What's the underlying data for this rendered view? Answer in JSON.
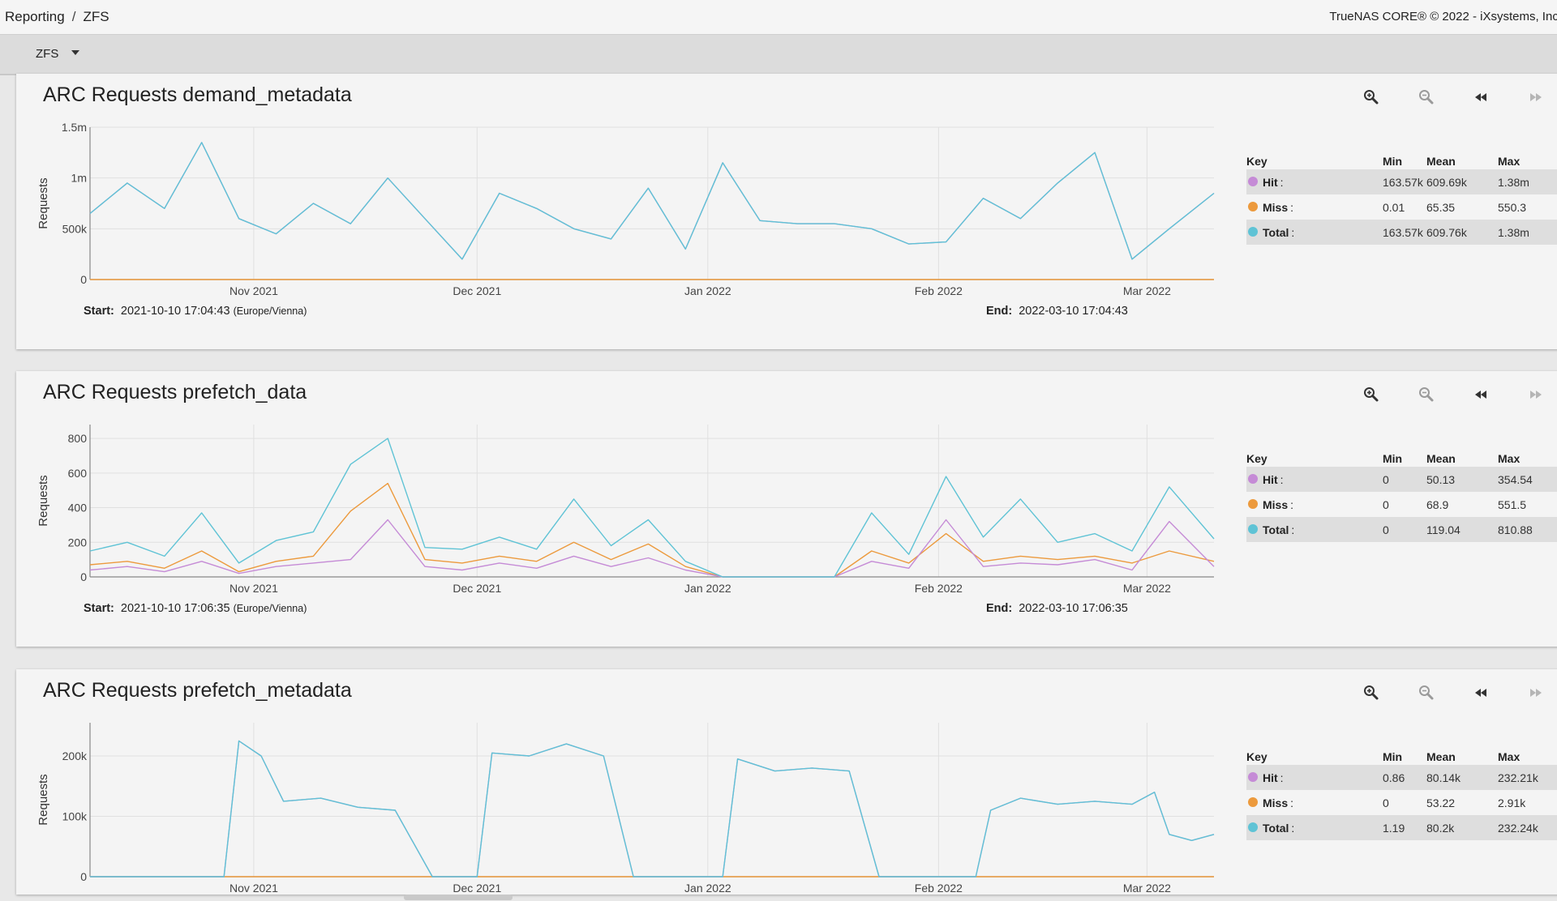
{
  "breadcrumb": {
    "parent": "Reporting",
    "separator": "/",
    "current": "ZFS"
  },
  "copyright": "TrueNAS CORE® © 2022 - iXsystems, Inc.",
  "toolbar": {
    "report_select": "ZFS"
  },
  "colors": {
    "hit": "#c58bd6",
    "miss": "#ec9a3d",
    "total": "#5fc3d5",
    "grid": "#e0e0e0",
    "axis": "#888888"
  },
  "icons": {
    "zoom_in": "zoom-in-icon",
    "zoom_out": "zoom-out-icon",
    "step_back": "rewind-icon",
    "step_forward": "fast-forward-icon"
  },
  "legend_header": {
    "key": "Key",
    "min": "Min",
    "mean": "Mean",
    "max": "Max"
  },
  "legend_labels": {
    "hit": "Hit",
    "miss": "Miss",
    "total": "Total"
  },
  "date_labels": {
    "start": "Start:",
    "end": "End:"
  },
  "charts": [
    {
      "title": "ARC Requests demand_metadata",
      "start": "2021-10-10 17:04:43",
      "timezone": "(Europe/Vienna)",
      "end": "2022-03-10 17:04:43",
      "stats": {
        "hit": {
          "min": "163.57k",
          "mean": "609.69k",
          "max": "1.38m"
        },
        "miss": {
          "min": "0.01",
          "mean": "65.35",
          "max": "550.3"
        },
        "total": {
          "min": "163.57k",
          "mean": "609.76k",
          "max": "1.38m"
        }
      }
    },
    {
      "title": "ARC Requests prefetch_data",
      "start": "2021-10-10 17:06:35",
      "timezone": "(Europe/Vienna)",
      "end": "2022-03-10 17:06:35",
      "stats": {
        "hit": {
          "min": "0",
          "mean": "50.13",
          "max": "354.54"
        },
        "miss": {
          "min": "0",
          "mean": "68.9",
          "max": "551.5"
        },
        "total": {
          "min": "0",
          "mean": "119.04",
          "max": "810.88"
        }
      }
    },
    {
      "title": "ARC Requests prefetch_metadata",
      "stats": {
        "hit": {
          "min": "0.86",
          "mean": "80.14k",
          "max": "232.21k"
        },
        "miss": {
          "min": "0",
          "mean": "53.22",
          "max": "2.91k"
        },
        "total": {
          "min": "1.19",
          "mean": "80.2k",
          "max": "232.24k"
        }
      }
    }
  ],
  "chart_data": [
    {
      "type": "line",
      "title": "ARC Requests demand_metadata",
      "ylabel": "Requests",
      "x_range": [
        "2021-10-10",
        "2022-03-10"
      ],
      "x_ticks": [
        "Nov 2021",
        "Dec 2021",
        "Jan 2022",
        "Feb 2022",
        "Mar 2022"
      ],
      "y_ticks": [
        "0",
        "500k",
        "1m",
        "1.5m"
      ],
      "ylim": [
        0,
        1500000
      ],
      "y_tick_values": [
        0,
        500000,
        1000000,
        1500000
      ],
      "x": [
        "2021-10-10",
        "2021-10-15",
        "2021-10-20",
        "2021-10-25",
        "2021-10-30",
        "2021-11-04",
        "2021-11-09",
        "2021-11-14",
        "2021-11-19",
        "2021-11-24",
        "2021-11-29",
        "2021-12-04",
        "2021-12-09",
        "2021-12-14",
        "2021-12-19",
        "2021-12-24",
        "2021-12-29",
        "2022-01-03",
        "2022-01-08",
        "2022-01-13",
        "2022-01-18",
        "2022-01-23",
        "2022-01-28",
        "2022-02-02",
        "2022-02-07",
        "2022-02-12",
        "2022-02-17",
        "2022-02-22",
        "2022-02-27",
        "2022-03-04",
        "2022-03-10"
      ],
      "series": [
        {
          "name": "Hit",
          "values": [
            650000,
            950000,
            700000,
            1350000,
            600000,
            450000,
            750000,
            550000,
            1000000,
            600000,
            200000,
            850000,
            700000,
            500000,
            400000,
            900000,
            300000,
            1150000,
            580000,
            550000,
            550000,
            500000,
            350000,
            370000,
            800000,
            600000,
            950000,
            1250000,
            200000,
            500000,
            850000
          ]
        },
        {
          "name": "Miss",
          "values": [
            20,
            60,
            40,
            90,
            30,
            20,
            50,
            35,
            80,
            40,
            10,
            60,
            45,
            30,
            25,
            70,
            15,
            90,
            40,
            30,
            35,
            30,
            20,
            25,
            60,
            40,
            70,
            100,
            15,
            30,
            60
          ]
        },
        {
          "name": "Total",
          "values": [
            650000,
            950000,
            700000,
            1350000,
            600000,
            450000,
            750000,
            550000,
            1000000,
            600000,
            200000,
            850000,
            700000,
            500000,
            400000,
            900000,
            300000,
            1150000,
            580000,
            550000,
            550000,
            500000,
            350000,
            370000,
            800000,
            600000,
            950000,
            1250000,
            200000,
            500000,
            850000
          ]
        }
      ]
    },
    {
      "type": "line",
      "title": "ARC Requests prefetch_data",
      "ylabel": "Requests",
      "x_range": [
        "2021-10-10",
        "2022-03-10"
      ],
      "x_ticks": [
        "Nov 2021",
        "Dec 2021",
        "Jan 2022",
        "Feb 2022",
        "Mar 2022"
      ],
      "y_ticks": [
        "0",
        "200",
        "400",
        "600",
        "800"
      ],
      "ylim": [
        0,
        880
      ],
      "y_tick_values": [
        0,
        200,
        400,
        600,
        800
      ],
      "x": [
        "2021-10-10",
        "2021-10-15",
        "2021-10-20",
        "2021-10-25",
        "2021-10-30",
        "2021-11-04",
        "2021-11-09",
        "2021-11-14",
        "2021-11-19",
        "2021-11-24",
        "2021-11-29",
        "2021-12-04",
        "2021-12-09",
        "2021-12-14",
        "2021-12-19",
        "2021-12-24",
        "2021-12-29",
        "2022-01-03",
        "2022-01-08",
        "2022-01-13",
        "2022-01-18",
        "2022-01-23",
        "2022-01-28",
        "2022-02-02",
        "2022-02-07",
        "2022-02-12",
        "2022-02-17",
        "2022-02-22",
        "2022-02-27",
        "2022-03-04",
        "2022-03-10"
      ],
      "series": [
        {
          "name": "Hit",
          "values": [
            40,
            60,
            30,
            90,
            20,
            60,
            80,
            100,
            330,
            60,
            40,
            80,
            50,
            120,
            60,
            110,
            40,
            0,
            0,
            0,
            0,
            90,
            50,
            330,
            60,
            80,
            70,
            100,
            40,
            320,
            60
          ]
        },
        {
          "name": "Miss",
          "values": [
            70,
            90,
            50,
            150,
            30,
            90,
            120,
            380,
            540,
            100,
            80,
            120,
            90,
            200,
            100,
            190,
            60,
            0,
            0,
            0,
            0,
            150,
            80,
            250,
            90,
            120,
            100,
            120,
            80,
            150,
            90
          ]
        },
        {
          "name": "Total",
          "values": [
            150,
            200,
            120,
            370,
            80,
            210,
            260,
            650,
            800,
            170,
            160,
            230,
            160,
            450,
            180,
            330,
            90,
            0,
            0,
            0,
            0,
            370,
            130,
            580,
            230,
            450,
            200,
            250,
            150,
            520,
            220
          ]
        }
      ]
    },
    {
      "type": "line",
      "title": "ARC Requests prefetch_metadata",
      "ylabel": "Requests",
      "x_range": [
        "2021-10-10",
        "2022-03-10"
      ],
      "x_ticks": [
        "Nov 2021",
        "Dec 2021",
        "Jan 2022",
        "Feb 2022",
        "Mar 2022"
      ],
      "y_ticks": [
        "0",
        "100k",
        "200k"
      ],
      "ylim": [
        0,
        255000
      ],
      "y_tick_values": [
        0,
        100000,
        200000
      ],
      "x": [
        "2021-10-10",
        "2021-10-15",
        "2021-10-20",
        "2021-10-25",
        "2021-10-28",
        "2021-10-30",
        "2021-11-02",
        "2021-11-05",
        "2021-11-10",
        "2021-11-15",
        "2021-11-20",
        "2021-11-25",
        "2021-11-27",
        "2021-12-01",
        "2021-12-03",
        "2021-12-08",
        "2021-12-13",
        "2021-12-18",
        "2021-12-22",
        "2021-12-28",
        "2022-01-02",
        "2022-01-03",
        "2022-01-05",
        "2022-01-10",
        "2022-01-15",
        "2022-01-20",
        "2022-01-24",
        "2022-01-30",
        "2022-02-03",
        "2022-02-06",
        "2022-02-08",
        "2022-02-12",
        "2022-02-17",
        "2022-02-22",
        "2022-02-27",
        "2022-03-02",
        "2022-03-04",
        "2022-03-07",
        "2022-03-10"
      ],
      "series": [
        {
          "name": "Hit",
          "values": [
            0,
            0,
            0,
            0,
            0,
            225000,
            200000,
            125000,
            130000,
            115000,
            110000,
            0,
            0,
            0,
            205000,
            200000,
            220000,
            200000,
            0,
            0,
            0,
            0,
            195000,
            175000,
            180000,
            175000,
            0,
            0,
            0,
            0,
            110000,
            130000,
            120000,
            125000,
            120000,
            140000,
            70000,
            60000,
            70000
          ]
        },
        {
          "name": "Miss",
          "values": [
            0,
            0,
            0,
            0,
            0,
            20,
            10,
            5,
            5,
            5,
            5,
            0,
            0,
            0,
            15,
            10,
            15,
            10,
            0,
            0,
            0,
            0,
            10,
            5,
            10,
            5,
            0,
            0,
            0,
            0,
            5,
            5,
            5,
            5,
            5,
            10,
            5,
            5,
            5
          ]
        },
        {
          "name": "Total",
          "values": [
            0,
            0,
            0,
            0,
            0,
            225000,
            200000,
            125000,
            130000,
            115000,
            110000,
            0,
            0,
            0,
            205000,
            200000,
            220000,
            200000,
            0,
            0,
            0,
            0,
            195000,
            175000,
            180000,
            175000,
            0,
            0,
            0,
            0,
            110000,
            130000,
            120000,
            125000,
            120000,
            140000,
            70000,
            60000,
            70000
          ]
        }
      ]
    }
  ]
}
